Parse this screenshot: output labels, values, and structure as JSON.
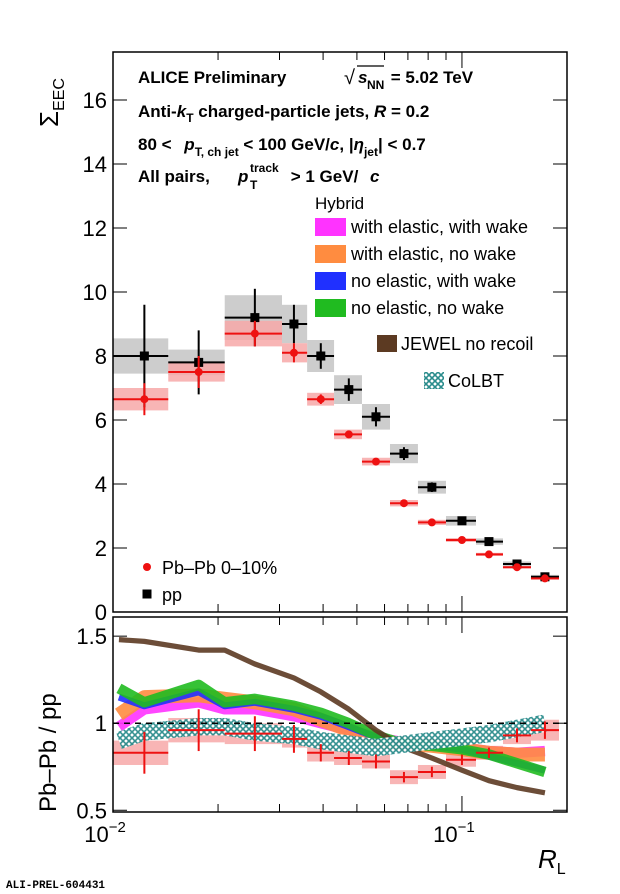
{
  "chart_data": [
    {
      "type": "errorbar",
      "annotations": [
        [
          "ALICE Preliminary"
        ],
        [
          "√",
          "s",
          "NN",
          " = 5.02 TeV"
        ],
        [
          "Anti-",
          "k",
          "T",
          " charged-particle jets, ",
          "R",
          " = 0.2"
        ],
        [
          "80 < ",
          "p",
          "T, ch jet",
          " < 100 GeV/",
          "c",
          ", |",
          "η",
          "jet",
          "| < 0.7"
        ],
        [
          "All pairs, ",
          "p",
          "track",
          "T",
          " > 1 GeV/",
          "c"
        ]
      ],
      "ylabel": [
        "Σ",
        "EEC"
      ],
      "x": [
        0.0123,
        0.0176,
        0.0255,
        0.033,
        0.0394,
        0.0474,
        0.0567,
        0.0682,
        0.082,
        0.1,
        0.1195,
        0.1438,
        0.1729
      ],
      "bins": [
        0.01,
        0.0144,
        0.0209,
        0.0305,
        0.036,
        0.043,
        0.0517,
        0.0622,
        0.0748,
        0.09,
        0.1097,
        0.1311,
        0.1577,
        0.1897
      ],
      "xlim": [
        0.01,
        0.2
      ],
      "ylim": [
        0,
        17.5
      ],
      "yticks": [
        0,
        2,
        4,
        6,
        8,
        10,
        12,
        14,
        16
      ],
      "legend": "bottom left",
      "series": [
        {
          "name": "pp",
          "color": "#000000",
          "syst_color": "#c4c4c4",
          "marker": "square",
          "values": [
            8.0,
            7.8,
            9.2,
            9.0,
            8.0,
            6.95,
            6.1,
            4.95,
            3.9,
            2.85,
            2.2,
            1.5,
            1.1
          ],
          "errors": [
            1.6,
            1.0,
            0.9,
            0.6,
            0.4,
            0.35,
            0.3,
            0.2,
            0.15,
            0.1,
            0.08,
            0.06,
            0.05
          ],
          "syst": [
            0.55,
            0.4,
            0.7,
            0.6,
            0.5,
            0.45,
            0.4,
            0.3,
            0.2,
            0.15,
            0.1,
            0.08,
            0.06
          ]
        },
        {
          "name": "Pb–Pb 0–10%",
          "color": "#ee1111",
          "syst_color": "#f7a8a8",
          "marker": "circle",
          "values": [
            6.65,
            7.5,
            8.7,
            8.1,
            6.65,
            5.55,
            4.7,
            3.4,
            2.8,
            2.25,
            1.8,
            1.4,
            1.05
          ],
          "errors": [
            0.5,
            0.5,
            0.4,
            0.3,
            0.15,
            0.1,
            0.08,
            0.07,
            0.06,
            0.05,
            0.05,
            0.04,
            0.04
          ],
          "syst": [
            0.35,
            0.3,
            0.4,
            0.3,
            0.2,
            0.15,
            0.12,
            0.1,
            0.08,
            0.06,
            0.05,
            0.04,
            0.04
          ]
        }
      ]
    },
    {
      "type": "ratio",
      "ylabel": "Pb–Pb / pp",
      "xlabel": [
        "R",
        "L"
      ],
      "xlim": [
        0.01,
        0.2
      ],
      "xticks": [
        {
          "value": 0.01,
          "label": "10",
          "exponent": "−2"
        },
        {
          "value": 0.1,
          "label": "10",
          "exponent": "−1"
        }
      ],
      "ylim": [
        0.49,
        1.61
      ],
      "yticks": [
        0.5,
        1,
        1.5
      ],
      "reference": 1,
      "x": [
        0.0123,
        0.0176,
        0.0255,
        0.033,
        0.0394,
        0.0474,
        0.0567,
        0.0682,
        0.082,
        0.1,
        0.1195,
        0.1438,
        0.1729
      ],
      "bins": [
        0.01,
        0.0144,
        0.0209,
        0.0305,
        0.036,
        0.043,
        0.0517,
        0.0622,
        0.0748,
        0.09,
        0.1097,
        0.1311,
        0.1577,
        0.1897
      ],
      "color": "#ee1111",
      "syst_color": "#f7a8a8",
      "values": [
        0.83,
        0.96,
        0.94,
        0.91,
        0.83,
        0.8,
        0.78,
        0.69,
        0.72,
        0.79,
        0.83,
        0.93,
        0.96
      ],
      "errors": [
        0.12,
        0.12,
        0.1,
        0.08,
        0.05,
        0.04,
        0.04,
        0.03,
        0.03,
        0.03,
        0.03,
        0.04,
        0.05
      ],
      "syst": [
        0.07,
        0.07,
        0.06,
        0.05,
        0.05,
        0.04,
        0.04,
        0.04,
        0.04,
        0.04,
        0.04,
        0.05,
        0.06
      ],
      "legend_title": "Hybrid",
      "models": [
        {
          "name": "with elastic, with wake",
          "color": "#ff33ff",
          "halfwidth": 0.03,
          "x": [
            0.0104,
            0.0123,
            0.0176,
            0.0209,
            0.0255,
            0.033,
            0.0394,
            0.0474,
            0.0567,
            0.0682,
            0.082,
            0.1,
            0.1195,
            0.1438,
            0.1729
          ],
          "values": [
            0.98,
            1.08,
            1.12,
            1.08,
            1.08,
            1.04,
            1.0,
            0.96,
            0.92,
            0.89,
            0.88,
            0.86,
            0.84,
            0.83,
            0.84
          ]
        },
        {
          "name": "with elastic, no wake",
          "color": "#ff8c40",
          "halfwidth": 0.04,
          "x": [
            0.0104,
            0.0123,
            0.0176,
            0.0209,
            0.0255,
            0.033,
            0.0394,
            0.0474,
            0.0567,
            0.0682,
            0.082,
            0.1,
            0.1195,
            0.1438,
            0.1729
          ],
          "values": [
            1.05,
            1.15,
            1.16,
            1.14,
            1.12,
            1.08,
            1.02,
            0.96,
            0.9,
            0.88,
            0.87,
            0.85,
            0.83,
            0.82,
            0.82
          ]
        },
        {
          "name": "no elastic, with wake",
          "color": "#2030ff",
          "halfwidth": 0.02,
          "x": [
            0.0104,
            0.0123,
            0.0176,
            0.0209,
            0.0255,
            0.033,
            0.0394,
            0.0474,
            0.0567,
            0.0682,
            0.082,
            0.1,
            0.1195,
            0.1438,
            0.1729
          ],
          "values": [
            1.15,
            1.1,
            1.18,
            1.1,
            1.12,
            1.08,
            1.04,
            0.98,
            0.92,
            0.88,
            0.87,
            0.85,
            0.81,
            0.77,
            0.73
          ]
        },
        {
          "name": "no elastic, no wake",
          "color": "#20bb20",
          "halfwidth": 0.03,
          "x": [
            0.0104,
            0.0123,
            0.0176,
            0.0209,
            0.0255,
            0.033,
            0.0394,
            0.0474,
            0.0567,
            0.0682,
            0.082,
            0.1,
            0.1195,
            0.1438,
            0.1729
          ],
          "values": [
            1.2,
            1.12,
            1.22,
            1.12,
            1.14,
            1.1,
            1.06,
            1.0,
            0.93,
            0.88,
            0.87,
            0.85,
            0.82,
            0.77,
            0.72
          ]
        },
        {
          "name": "JEWEL no recoil",
          "color": "#5c3a22",
          "halfwidth": 0.015,
          "x": [
            0.0104,
            0.0123,
            0.0176,
            0.0209,
            0.0255,
            0.033,
            0.0394,
            0.0474,
            0.0567,
            0.0682,
            0.082,
            0.1,
            0.1195,
            0.1438,
            0.1729
          ],
          "values": [
            1.48,
            1.47,
            1.42,
            1.42,
            1.34,
            1.26,
            1.18,
            1.08,
            0.96,
            0.86,
            0.8,
            0.73,
            0.67,
            0.63,
            0.6
          ]
        },
        {
          "name": "CoLBT",
          "color": "#2a8c8c",
          "halfwidth": 0.05,
          "hatch": true,
          "x": [
            0.0104,
            0.0123,
            0.0176,
            0.0209,
            0.0255,
            0.033,
            0.0394,
            0.0474,
            0.0567,
            0.0682,
            0.082,
            0.1,
            0.1195,
            0.1438,
            0.1729
          ],
          "values": [
            0.9,
            0.95,
            0.98,
            0.98,
            0.95,
            0.93,
            0.9,
            0.88,
            0.86,
            0.88,
            0.9,
            0.92,
            0.94,
            0.97,
            1.0
          ]
        }
      ]
    }
  ],
  "footer": "ALI-PREL-604431"
}
